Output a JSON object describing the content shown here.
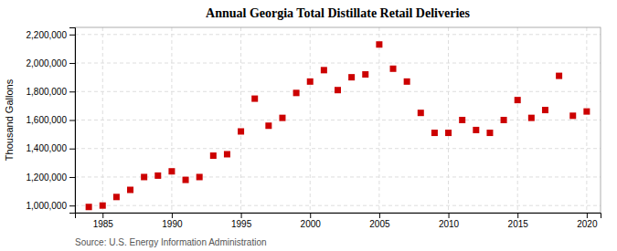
{
  "chart_data": {
    "type": "scatter",
    "title": "Annual Georgia Total Distillate Retail Deliveries",
    "ylabel": "Thousand Gallons",
    "annotation": "Source: U.S. Energy Information Administration",
    "color": "#cc0000",
    "marker": "square",
    "grid": true,
    "x": [
      1984,
      1985,
      1986,
      1987,
      1988,
      1989,
      1990,
      1991,
      1992,
      1993,
      1994,
      1995,
      1996,
      1997,
      1998,
      1999,
      2000,
      2001,
      2002,
      2003,
      2004,
      2005,
      2006,
      2007,
      2008,
      2009,
      2010,
      2011,
      2012,
      2013,
      2014,
      2015,
      2016,
      2017,
      2018,
      2019,
      2020
    ],
    "values": [
      990000,
      1000000,
      1060000,
      1110000,
      1200000,
      1210000,
      1240000,
      1180000,
      1200000,
      1350000,
      1360000,
      1520000,
      1750000,
      1560000,
      1615000,
      1790000,
      1870000,
      1950000,
      1810000,
      1900000,
      1920000,
      2130000,
      1960000,
      1870000,
      1650000,
      1510000,
      1510000,
      1600000,
      1530000,
      1510000,
      1600000,
      1740000,
      1615000,
      1670000,
      1910000,
      1630000,
      1660000
    ],
    "xlim": [
      1983,
      2021
    ],
    "ylim": [
      950000,
      2250000
    ],
    "xticks": [
      1985,
      1990,
      1995,
      2000,
      2005,
      2010,
      2015,
      2020
    ],
    "yticks": [
      {
        "value": 1000000,
        "label": "1,000,000"
      },
      {
        "value": 1200000,
        "label": "1,200,000"
      },
      {
        "value": 1400000,
        "label": "1,400,000"
      },
      {
        "value": 1600000,
        "label": "1,600,000"
      },
      {
        "value": 1800000,
        "label": "1,800,000"
      },
      {
        "value": 2000000,
        "label": "2,000,000"
      },
      {
        "value": 2200000,
        "label": "2,200,000"
      }
    ]
  }
}
